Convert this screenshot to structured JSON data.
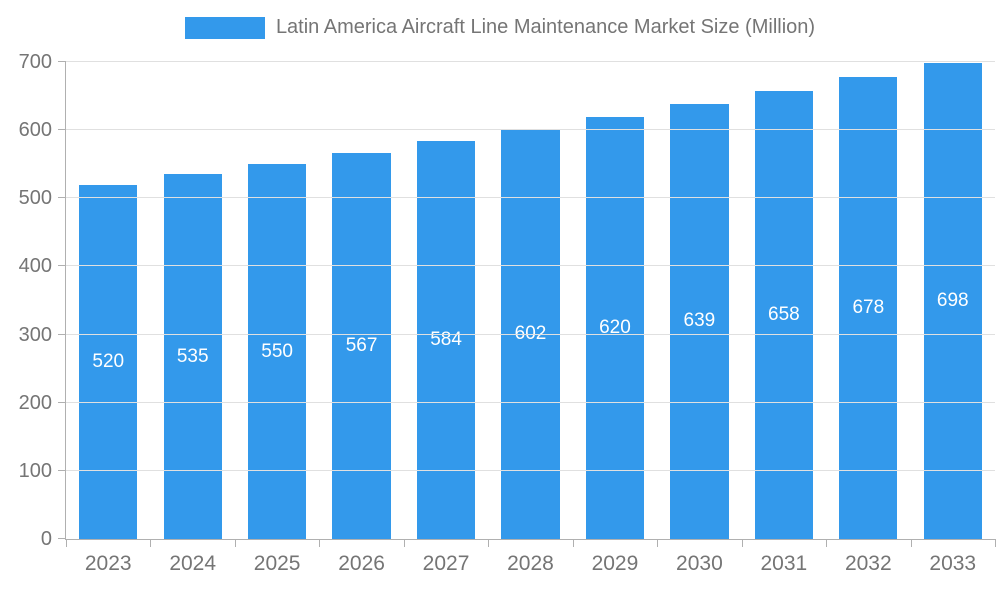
{
  "chart_data": {
    "type": "bar",
    "title": "Latin America Aircraft Line Maintenance Market Size (Million)",
    "categories": [
      "2023",
      "2024",
      "2025",
      "2026",
      "2027",
      "2028",
      "2029",
      "2030",
      "2031",
      "2032",
      "2033"
    ],
    "values": [
      520,
      535,
      550,
      567,
      584,
      602,
      620,
      639,
      658,
      678,
      698
    ],
    "xlabel": "",
    "ylabel": "",
    "ylim": [
      0,
      700
    ],
    "ytick_step": 100,
    "grid": true,
    "legend_position": "top",
    "colors": {
      "bar": "#3399EB",
      "grid": "#e0e0e0",
      "axis": "#b0b0b0",
      "axis_text": "#757575",
      "bar_label_text": "#ffffff"
    }
  }
}
